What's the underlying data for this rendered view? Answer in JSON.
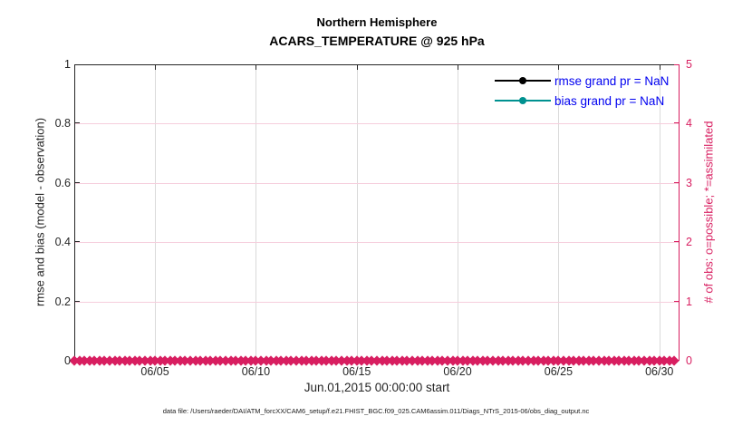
{
  "figure": {
    "footer": "data file: /Users/raeder/DAI/ATM_forcXX/CAM6_setup/f.e21.FHIST_BGC.f09_025.CAM6assim.011/Diags_NTrS_2015-06/obs_diag_output.nc",
    "colors": {
      "obs_pink": "#D81E60",
      "grid_horizontal_pink": "#F6CEDC",
      "grid_vertical_gray": "#DADADA",
      "rmse_black": "#000000",
      "bias_teal": "#009190",
      "legend_text_blue": "#0000F0",
      "axis_text_dark": "#262626"
    }
  },
  "legend": {
    "items": [
      {
        "label": "rmse grand pr = NaN",
        "color": "#000000",
        "marker": "filled-circle"
      },
      {
        "label": "bias grand pr = NaN",
        "color": "#009190",
        "marker": "filled-circle"
      }
    ]
  },
  "chart_data": {
    "type": "line",
    "title": "Northern Hemisphere",
    "subtitle": "ACARS_TEMPERATURE @ 925 hPa",
    "xlabel": "Jun.01,2015 00:00:00 start",
    "ylabel_left": "rmse and bias (model - observation)",
    "ylabel_right": "# of obs: o=possible; *=assimilated",
    "grid": "on",
    "legend_position": "top-right-inside",
    "x_axis": {
      "start": "Jun 01 2015 00:00:00",
      "days_total": 30,
      "tick_days": [
        5,
        10,
        15,
        20,
        25,
        30
      ],
      "tick_labels": [
        "06/05",
        "06/10",
        "06/15",
        "06/20",
        "06/25",
        "06/30"
      ]
    },
    "y_axis_left": {
      "min": 0,
      "max": 1,
      "tick_values": [
        0,
        0.2,
        0.4,
        0.6,
        0.8,
        1
      ],
      "tick_labels": [
        "0",
        "0.2",
        "0.4",
        "0.6",
        "0.8",
        "1"
      ]
    },
    "y_axis_right": {
      "min": 0,
      "max": 5,
      "tick_values": [
        0,
        1,
        2,
        3,
        4,
        5
      ],
      "tick_labels": [
        "0",
        "1",
        "2",
        "3",
        "4",
        "5"
      ]
    },
    "series": [
      {
        "name": "rmse grand pr = NaN",
        "type": "line",
        "color": "#000000",
        "marker": "circle",
        "values": "NaN"
      },
      {
        "name": "bias grand pr = NaN",
        "type": "line",
        "color": "#009190",
        "marker": "circle",
        "values": "NaN"
      },
      {
        "name": "# of obs possible (o)",
        "type": "markers",
        "color": "#D81E60",
        "value_constant": 0,
        "day_start": 0,
        "day_step": 0.25,
        "count": 120
      },
      {
        "name": "# of obs assimilated (*)",
        "type": "markers",
        "color": "#D81E60",
        "value_constant": 0,
        "day_start": 0,
        "day_step": 0.25,
        "count": 120
      }
    ]
  }
}
